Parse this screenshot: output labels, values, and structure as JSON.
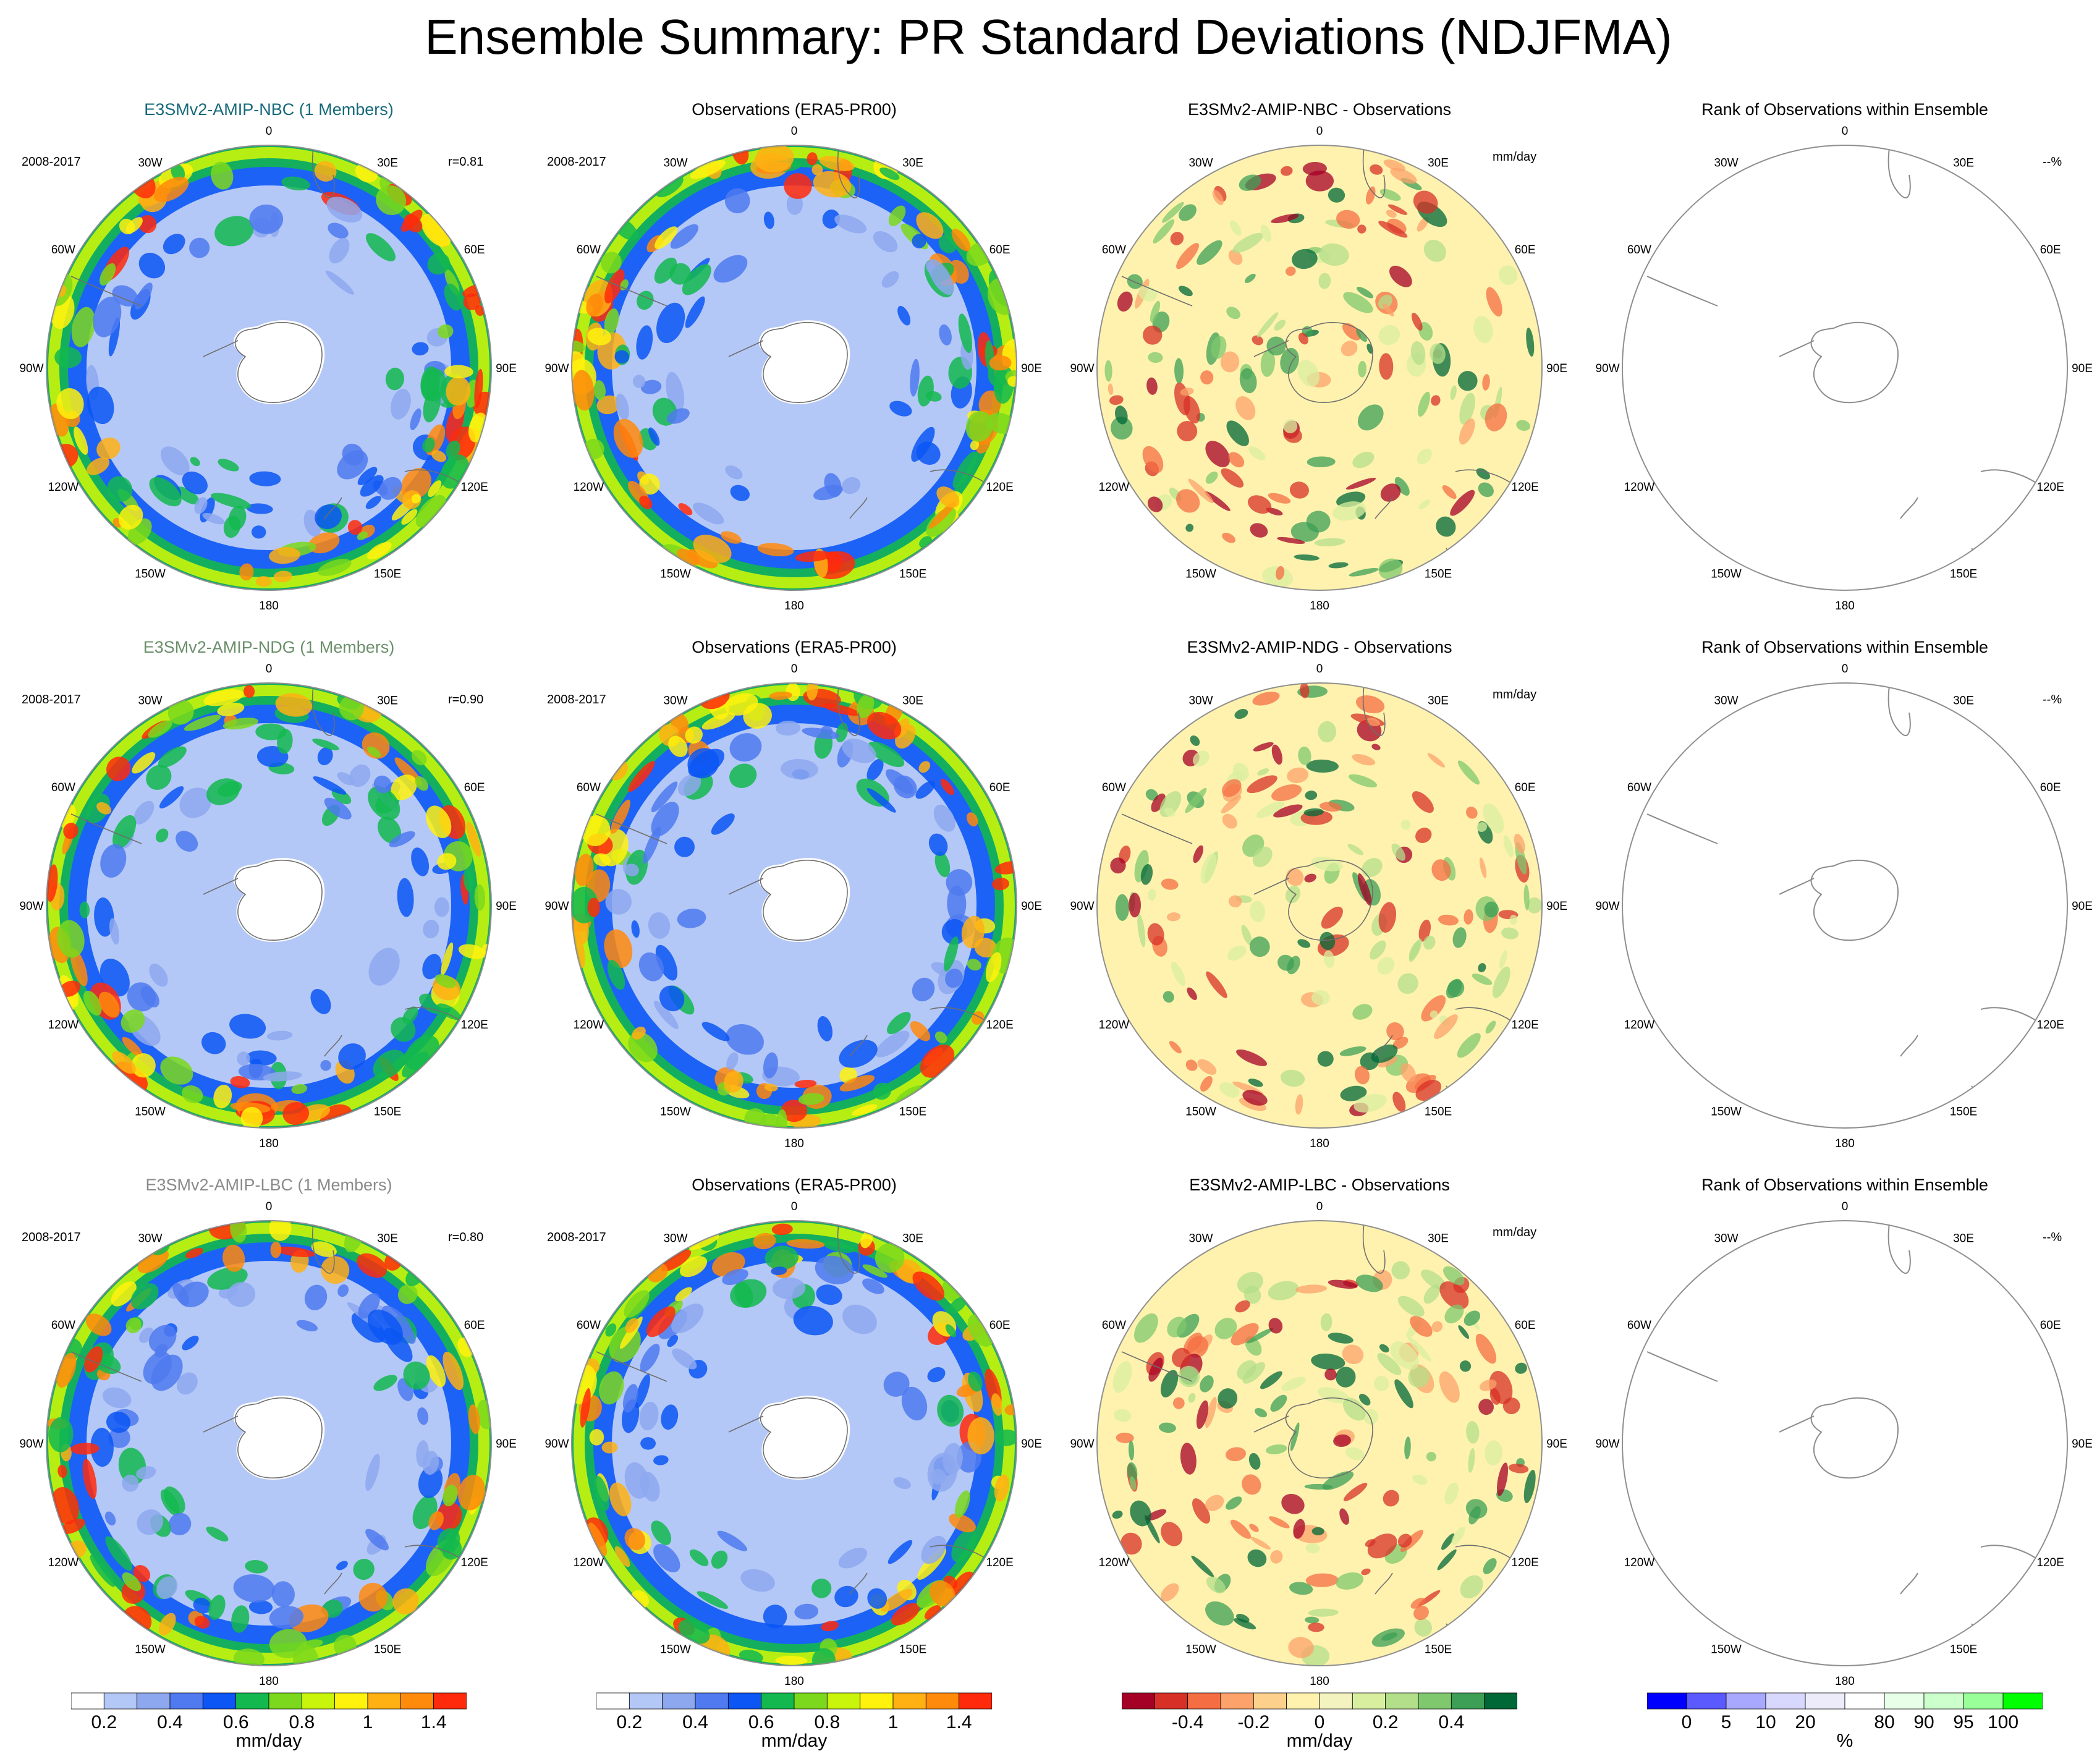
{
  "figure": {
    "title": "Ensemble Summary: PR Standard Deviations (NDJFMA)"
  },
  "common": {
    "period": "2008-2017",
    "rank_unit_label": "--%",
    "diff_unit_label": "mm/day",
    "lon_labels": [
      "0",
      "30E",
      "60E",
      "90E",
      "120E",
      "150E",
      "180",
      "150W",
      "120W",
      "90W",
      "60W",
      "30W"
    ]
  },
  "rows": [
    {
      "model_title": "E3SMv2-AMIP-NBC (1 Members)",
      "model_title_color": "#16697a",
      "corr": "r=0.81",
      "obs_title": "Observations (ERA5-PR00)",
      "diff_title": "E3SMv2-AMIP-NBC - Observations",
      "rank_title": "Rank of Observations within Ensemble"
    },
    {
      "model_title": "E3SMv2-AMIP-NDG (1 Members)",
      "model_title_color": "#6b8f6b",
      "corr": "r=0.90",
      "obs_title": "Observations (ERA5-PR00)",
      "diff_title": "E3SMv2-AMIP-NDG - Observations",
      "rank_title": "Rank of Observations within Ensemble"
    },
    {
      "model_title": "E3SMv2-AMIP-LBC (1 Members)",
      "model_title_color": "#8a8a8a",
      "corr": "r=0.80",
      "obs_title": "Observations (ERA5-PR00)",
      "diff_title": "E3SMv2-AMIP-LBC - Observations",
      "rank_title": "Rank of Observations within Ensemble"
    }
  ],
  "colorbars": {
    "std": {
      "unit": "mm/day",
      "colors": [
        "#ffffff",
        "#b4c8f7",
        "#8da8ee",
        "#4f7af0",
        "#0b56f5",
        "#13b84f",
        "#7bd81c",
        "#c9f50c",
        "#fff20d",
        "#ffb013",
        "#ff8a0c",
        "#ff2a0c"
      ],
      "labels": [
        "0.2",
        "0.4",
        "0.6",
        "0.8",
        "1",
        "1.4"
      ],
      "label_after_box": [
        1,
        3,
        5,
        7,
        9,
        11
      ]
    },
    "diff": {
      "unit": "mm/day",
      "colors": [
        "#a50026",
        "#d73027",
        "#f46d43",
        "#fca26a",
        "#fdd18b",
        "#fff2ae",
        "#f3f3c0",
        "#d9efa0",
        "#b3df8a",
        "#7fc86e",
        "#3c9f55",
        "#006837"
      ],
      "labels": [
        "-0.4",
        "-0.2",
        "0",
        "0.2",
        "0.4"
      ],
      "label_after_box": [
        2,
        4,
        6,
        8,
        10
      ]
    },
    "rank": {
      "unit": "%",
      "colors": [
        "#0000ff",
        "#5a5aff",
        "#a8a8ff",
        "#d8d8ff",
        "#ececfb",
        "#ffffff",
        "#e8ffe8",
        "#ccffcc",
        "#99ff99",
        "#00ff00"
      ],
      "labels": [
        "0",
        "5",
        "10",
        "20",
        "80",
        "90",
        "95",
        "100"
      ],
      "label_after_box": [
        1,
        2,
        3,
        4,
        6,
        7,
        8,
        9
      ]
    }
  }
}
